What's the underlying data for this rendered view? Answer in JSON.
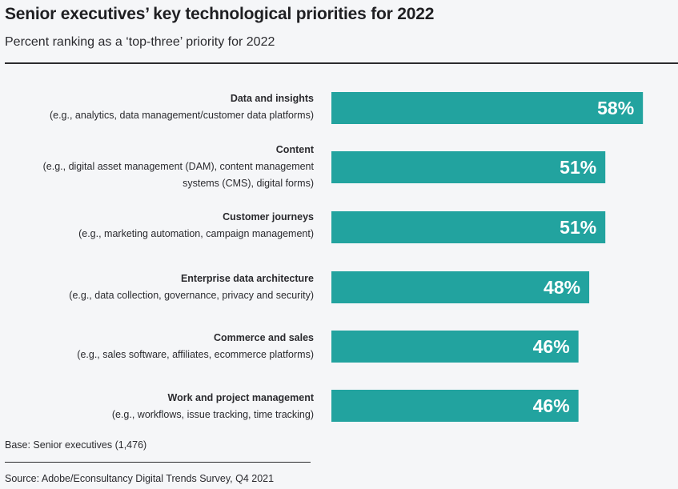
{
  "chart_data": {
    "type": "bar",
    "orientation": "horizontal",
    "title": "Senior executives’ key technological priorities for 2022",
    "subtitle": "Percent ranking as a ‘top-three’ priority for 2022",
    "xlabel": "",
    "ylabel": "",
    "xlim": [
      0,
      100
    ],
    "grid": false,
    "legend": "none",
    "bar_color": "#22a39f",
    "label_color": "#ffffff",
    "categories": [
      {
        "name": "Data and insights",
        "desc": "(e.g., analytics, data management/customer data platforms)"
      },
      {
        "name": "Content",
        "desc": "(e.g., digital asset management (DAM), content management\nsystems (CMS), digital forms)"
      },
      {
        "name": "Customer journeys",
        "desc": "(e.g., marketing automation, campaign management)"
      },
      {
        "name": "Enterprise data architecture",
        "desc": "(e.g., data collection, governance, privacy and security)"
      },
      {
        "name": "Commerce and sales",
        "desc": "(e.g., sales software, affiliates, ecommerce platforms)"
      },
      {
        "name": "Work and project management",
        "desc": "(e.g., workflows, issue tracking, time tracking)"
      }
    ],
    "values": [
      58,
      51,
      51,
      48,
      46,
      46
    ],
    "value_labels": [
      "58%",
      "51%",
      "51%",
      "48%",
      "46%",
      "46%"
    ],
    "unit": "%"
  },
  "footer": {
    "base": "Base: Senior executives (1,476)",
    "source": "Source: Adobe/Econsultancy Digital Trends Survey, Q4 2021"
  }
}
